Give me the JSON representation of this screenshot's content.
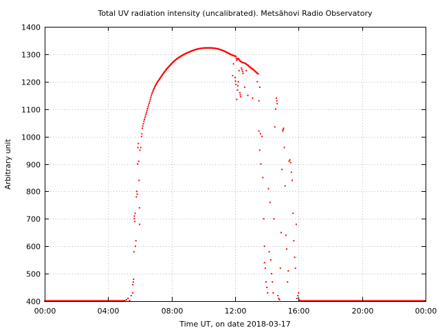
{
  "chart_data": {
    "type": "scatter",
    "title": "Total UV radiation intensity (uncalibrated). Metsähovi Radio Observatory",
    "xlabel": "Time UT, on date 2018-03-17",
    "ylabel": "Arbitrary unit",
    "xlim": [
      0,
      24
    ],
    "ylim": [
      400,
      1400
    ],
    "x_unit": "hours UT",
    "xticks": [
      {
        "value": 0,
        "label": "00:00"
      },
      {
        "value": 4,
        "label": "04:00"
      },
      {
        "value": 8,
        "label": "08:00"
      },
      {
        "value": 12,
        "label": "12:00"
      },
      {
        "value": 16,
        "label": "16:00"
      },
      {
        "value": 20,
        "label": "20:00"
      },
      {
        "value": 24,
        "label": "00:00"
      }
    ],
    "yticks": [
      {
        "value": 400,
        "label": "400"
      },
      {
        "value": 500,
        "label": "500"
      },
      {
        "value": 600,
        "label": "600"
      },
      {
        "value": 700,
        "label": "700"
      },
      {
        "value": 800,
        "label": "800"
      },
      {
        "value": 900,
        "label": "900"
      },
      {
        "value": 1000,
        "label": "1000"
      },
      {
        "value": 1100,
        "label": "1100"
      },
      {
        "value": 1200,
        "label": "1200"
      },
      {
        "value": 1300,
        "label": "1300"
      },
      {
        "value": 1400,
        "label": "1400"
      }
    ],
    "grid": true,
    "marker_color": "#ff0000",
    "background": "#ffffff",
    "series": [
      {
        "points": [
          [
            0.0,
            400
          ],
          [
            1.0,
            400
          ],
          [
            2.0,
            400
          ],
          [
            3.0,
            400
          ],
          [
            4.0,
            400
          ],
          [
            4.8,
            400
          ],
          [
            5.05,
            402
          ],
          [
            5.15,
            405
          ],
          [
            5.25,
            410
          ],
          [
            5.35,
            402
          ],
          [
            5.45,
            420
          ],
          [
            5.55,
            430
          ],
          [
            5.55,
            460
          ],
          [
            5.58,
            470
          ],
          [
            5.6,
            480
          ],
          [
            5.62,
            580
          ],
          [
            5.65,
            700
          ],
          [
            5.65,
            710
          ],
          [
            5.68,
            690
          ],
          [
            5.7,
            720
          ],
          [
            5.72,
            600
          ],
          [
            5.75,
            620
          ],
          [
            5.78,
            780
          ],
          [
            5.8,
            800
          ],
          [
            5.83,
            790
          ],
          [
            5.85,
            900
          ],
          [
            5.88,
            960
          ],
          [
            5.9,
            975
          ],
          [
            5.92,
            910
          ],
          [
            5.95,
            840
          ],
          [
            5.97,
            740
          ],
          [
            5.98,
            680
          ],
          [
            6.0,
            950
          ],
          [
            6.05,
            960
          ],
          [
            6.1,
            1000
          ],
          [
            6.12,
            1010
          ],
          [
            6.15,
            1030
          ],
          [
            6.25,
            1055
          ],
          [
            6.35,
            1075
          ],
          [
            6.45,
            1095
          ],
          [
            6.55,
            1115
          ],
          [
            6.65,
            1135
          ],
          [
            6.75,
            1155
          ],
          [
            6.85,
            1170
          ],
          [
            6.95,
            1183
          ],
          [
            7.1,
            1198
          ],
          [
            7.3,
            1215
          ],
          [
            7.5,
            1232
          ],
          [
            7.7,
            1247
          ],
          [
            7.9,
            1260
          ],
          [
            8.1,
            1272
          ],
          [
            8.3,
            1282
          ],
          [
            8.5,
            1290
          ],
          [
            8.7,
            1297
          ],
          [
            8.9,
            1303
          ],
          [
            9.1,
            1308
          ],
          [
            9.3,
            1313
          ],
          [
            9.5,
            1317
          ],
          [
            9.7,
            1320
          ],
          [
            9.9,
            1322
          ],
          [
            10.1,
            1323
          ],
          [
            10.3,
            1323
          ],
          [
            10.5,
            1323
          ],
          [
            10.7,
            1322
          ],
          [
            10.9,
            1320
          ],
          [
            11.1,
            1316
          ],
          [
            11.3,
            1312
          ],
          [
            11.5,
            1306
          ],
          [
            11.7,
            1300
          ],
          [
            11.9,
            1295
          ],
          [
            12.05,
            1292
          ],
          [
            12.1,
            1278
          ],
          [
            12.2,
            1285
          ],
          [
            12.3,
            1276
          ],
          [
            12.45,
            1270
          ],
          [
            12.6,
            1268
          ],
          [
            12.8,
            1260
          ],
          [
            13.0,
            1250
          ],
          [
            13.15,
            1244
          ],
          [
            13.3,
            1236
          ],
          [
            13.45,
            1228
          ],
          [
            11.85,
            1222
          ],
          [
            11.9,
            1265
          ],
          [
            12.0,
            1215
          ],
          [
            12.05,
            1190
          ],
          [
            12.1,
            1135
          ],
          [
            12.15,
            1170
          ],
          [
            12.2,
            1200
          ],
          [
            12.25,
            1240
          ],
          [
            12.3,
            1160
          ],
          [
            12.35,
            1145
          ],
          [
            12.4,
            1250
          ],
          [
            12.5,
            1230
          ],
          [
            12.6,
            1180
          ],
          [
            12.7,
            1240
          ],
          [
            12.8,
            1150
          ],
          [
            13.1,
            1140
          ],
          [
            13.4,
            1200
          ],
          [
            13.5,
            1130
          ],
          [
            13.55,
            1180
          ],
          [
            13.5,
            1020
          ],
          [
            13.55,
            950
          ],
          [
            13.6,
            1010
          ],
          [
            13.62,
            900
          ],
          [
            13.7,
            1000
          ],
          [
            13.75,
            850
          ],
          [
            13.8,
            700
          ],
          [
            13.85,
            600
          ],
          [
            13.85,
            540
          ],
          [
            13.9,
            520
          ],
          [
            13.95,
            470
          ],
          [
            14.0,
            450
          ],
          [
            14.05,
            430
          ],
          [
            14.1,
            810
          ],
          [
            14.15,
            580
          ],
          [
            14.2,
            760
          ],
          [
            14.25,
            550
          ],
          [
            14.3,
            500
          ],
          [
            14.35,
            470
          ],
          [
            14.4,
            430
          ],
          [
            14.45,
            700
          ],
          [
            14.5,
            1035
          ],
          [
            14.55,
            1100
          ],
          [
            14.6,
            1140
          ],
          [
            14.65,
            1120
          ],
          [
            14.7,
            420
          ],
          [
            14.75,
            410
          ],
          [
            14.8,
            405
          ],
          [
            14.85,
            520
          ],
          [
            14.9,
            650
          ],
          [
            14.95,
            880
          ],
          [
            15.0,
            1020
          ],
          [
            15.05,
            1030
          ],
          [
            15.1,
            960
          ],
          [
            15.15,
            820
          ],
          [
            15.2,
            640
          ],
          [
            15.25,
            590
          ],
          [
            15.3,
            470
          ],
          [
            15.35,
            510
          ],
          [
            15.4,
            910
          ],
          [
            15.45,
            915
          ],
          [
            15.5,
            905
          ],
          [
            15.55,
            870
          ],
          [
            15.6,
            840
          ],
          [
            15.65,
            720
          ],
          [
            15.7,
            620
          ],
          [
            15.75,
            560
          ],
          [
            15.8,
            520
          ],
          [
            15.85,
            680
          ],
          [
            15.9,
            410
          ],
          [
            15.95,
            420
          ],
          [
            16.0,
            430
          ],
          [
            16.05,
            404
          ],
          [
            16.2,
            400
          ],
          [
            17.0,
            400
          ],
          [
            18.0,
            400
          ],
          [
            19.0,
            400
          ],
          [
            20.0,
            400
          ],
          [
            21.0,
            400
          ],
          [
            22.0,
            400
          ],
          [
            23.0,
            400
          ],
          [
            24.0,
            400
          ]
        ]
      }
    ]
  }
}
